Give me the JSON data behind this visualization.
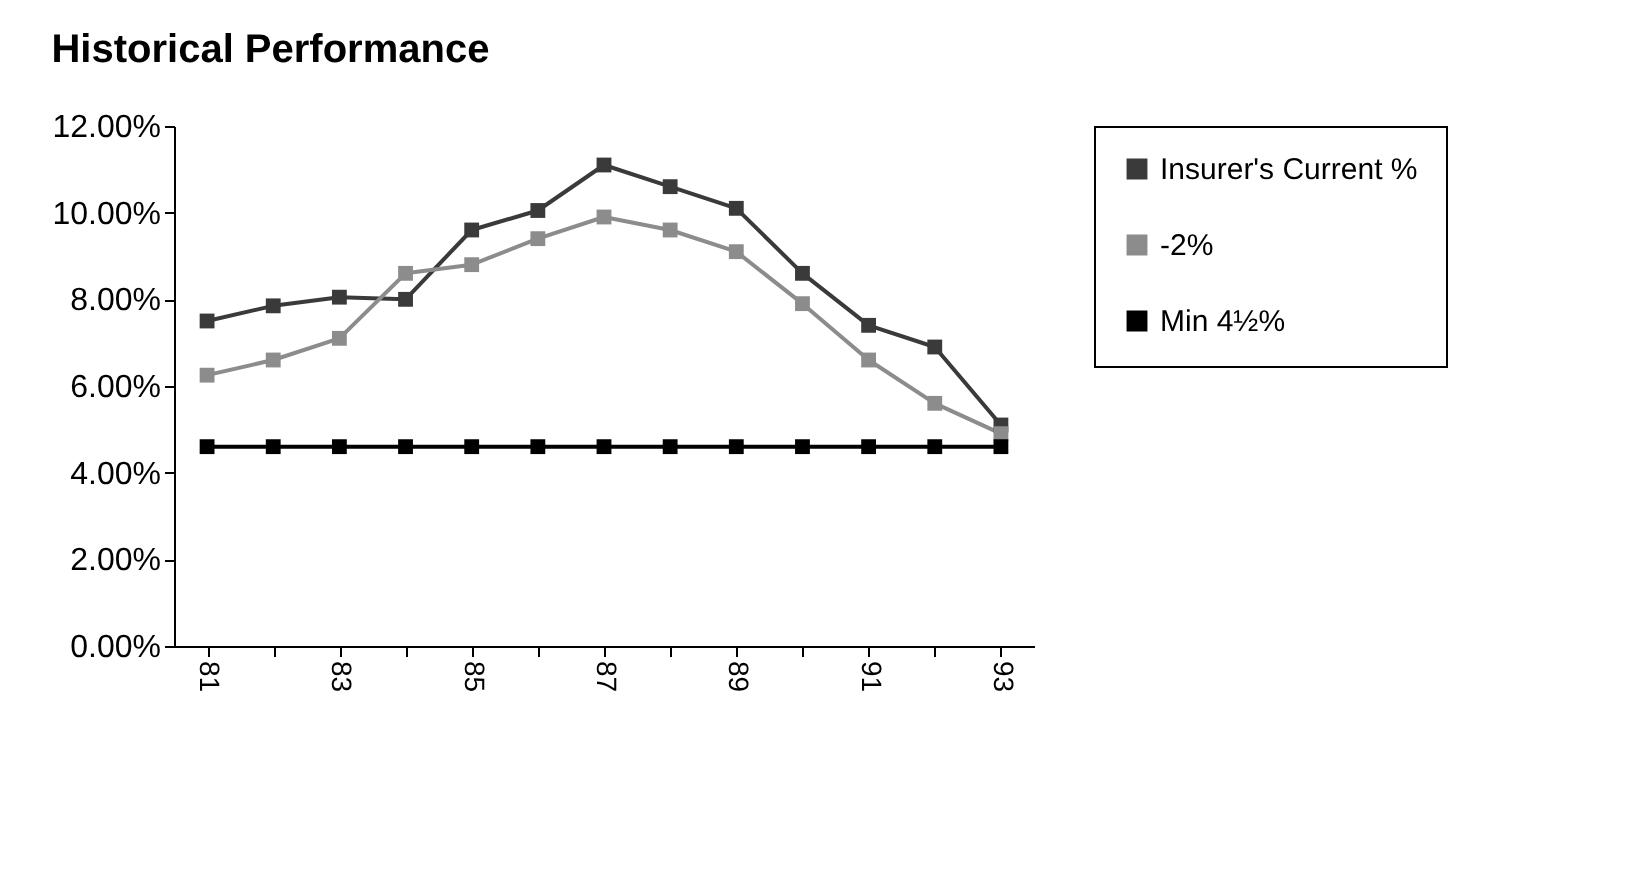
{
  "chart_data": {
    "type": "line",
    "title": "Historical Performance",
    "categories": [
      "81",
      null,
      "83",
      null,
      "85",
      null,
      "87",
      null,
      "89",
      null,
      "91",
      null,
      "93"
    ],
    "series": [
      {
        "name": "Insurer's Current %",
        "color": "#3a3a3a",
        "values": [
          7.5,
          7.85,
          8.05,
          8.0,
          9.6,
          10.05,
          11.1,
          10.6,
          10.1,
          8.6,
          7.4,
          6.9,
          5.1
        ]
      },
      {
        "name": "-2%",
        "color": "#8c8c8c",
        "values": [
          6.25,
          6.6,
          7.1,
          8.6,
          8.8,
          9.4,
          9.9,
          9.6,
          9.1,
          7.9,
          6.6,
          5.6,
          4.9
        ]
      },
      {
        "name": "Min 4½%",
        "color": "#000000",
        "values": [
          4.6,
          4.6,
          4.6,
          4.6,
          4.6,
          4.6,
          4.6,
          4.6,
          4.6,
          4.6,
          4.6,
          4.6,
          4.6
        ]
      }
    ],
    "ylim": [
      0,
      12
    ],
    "yticks": [
      {
        "value": 0,
        "label": "0.00%"
      },
      {
        "value": 2,
        "label": "2.00%"
      },
      {
        "value": 4,
        "label": "4.00%"
      },
      {
        "value": 6,
        "label": "6.00%"
      },
      {
        "value": 8,
        "label": "8.00%"
      },
      {
        "value": 10,
        "label": "10.00%"
      },
      {
        "value": 12,
        "label": "12.00%"
      }
    ],
    "grid": false,
    "legend": "right",
    "marker": "square",
    "line_style": "solid"
  }
}
